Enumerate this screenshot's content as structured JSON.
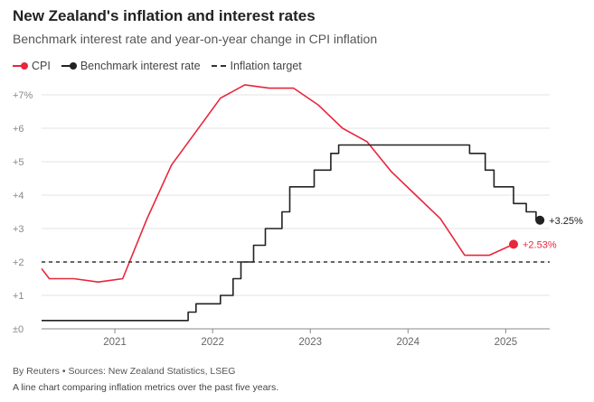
{
  "title": "New Zealand's inflation and interest rates",
  "subtitle": "Benchmark interest rate and year-on-year change in CPI inflation",
  "legend": [
    {
      "label": "CPI",
      "color": "#e8263c",
      "style": "line-dot"
    },
    {
      "label": "Benchmark interest rate",
      "color": "#222222",
      "style": "line-dot"
    },
    {
      "label": "Inflation target",
      "color": "#333333",
      "style": "dashed"
    }
  ],
  "footer": {
    "source": "By Reuters • Sources: New Zealand Statistics, LSEG",
    "description": "A line chart comparing inflation metrics over the past five years."
  },
  "chart_data": {
    "type": "line",
    "title": "New Zealand's inflation and interest rates",
    "xlabel": "",
    "ylabel": "",
    "xlim": [
      2020.25,
      2025.45
    ],
    "ylim": [
      0,
      7
    ],
    "y_ticks": [
      0,
      1,
      2,
      3,
      4,
      5,
      6,
      7
    ],
    "y_tick_labels": [
      "±0",
      "+1",
      "+2",
      "+3",
      "+4",
      "+5",
      "+6",
      "+7%"
    ],
    "x_ticks": [
      2021,
      2022,
      2023,
      2024,
      2025
    ],
    "x_tick_labels": [
      "2021",
      "2022",
      "2023",
      "2024",
      "2025"
    ],
    "grid": true,
    "series": [
      {
        "name": "CPI",
        "color": "#e8263c",
        "step": false,
        "points": [
          [
            2020.25,
            1.8
          ],
          [
            2020.33,
            1.5
          ],
          [
            2020.58,
            1.5
          ],
          [
            2020.83,
            1.4
          ],
          [
            2021.08,
            1.5
          ],
          [
            2021.33,
            3.3
          ],
          [
            2021.58,
            4.9
          ],
          [
            2021.83,
            5.9
          ],
          [
            2022.08,
            6.9
          ],
          [
            2022.33,
            7.3
          ],
          [
            2022.58,
            7.2
          ],
          [
            2022.83,
            7.2
          ],
          [
            2023.08,
            6.7
          ],
          [
            2023.33,
            6.0
          ],
          [
            2023.58,
            5.6
          ],
          [
            2023.83,
            4.7
          ],
          [
            2024.08,
            4.0
          ],
          [
            2024.33,
            3.3
          ],
          [
            2024.58,
            2.2
          ],
          [
            2024.83,
            2.2
          ],
          [
            2025.08,
            2.53
          ]
        ],
        "end_label": "+2.53%",
        "end_value": 2.53
      },
      {
        "name": "Benchmark interest rate",
        "color": "#222222",
        "step": true,
        "points": [
          [
            2020.25,
            0.25
          ],
          [
            2021.75,
            0.5
          ],
          [
            2021.83,
            0.75
          ],
          [
            2022.08,
            1.0
          ],
          [
            2022.21,
            1.5
          ],
          [
            2022.29,
            2.0
          ],
          [
            2022.42,
            2.5
          ],
          [
            2022.54,
            3.0
          ],
          [
            2022.71,
            3.5
          ],
          [
            2022.79,
            4.25
          ],
          [
            2023.04,
            4.75
          ],
          [
            2023.21,
            5.25
          ],
          [
            2023.29,
            5.5
          ],
          [
            2024.63,
            5.25
          ],
          [
            2024.79,
            4.75
          ],
          [
            2024.88,
            4.25
          ],
          [
            2025.08,
            3.75
          ],
          [
            2025.21,
            3.5
          ],
          [
            2025.31,
            3.25
          ],
          [
            2025.35,
            3.25
          ]
        ],
        "end_label": "+3.25%",
        "end_value": 3.25
      },
      {
        "name": "Inflation target",
        "color": "#333333",
        "dashed": true,
        "points": [
          [
            2020.25,
            2
          ],
          [
            2025.45,
            2
          ]
        ]
      }
    ]
  }
}
